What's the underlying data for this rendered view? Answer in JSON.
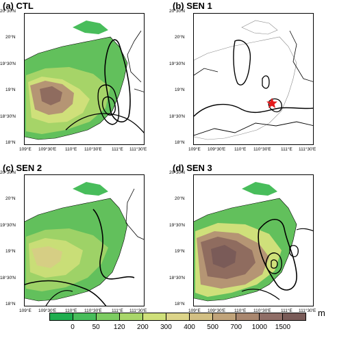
{
  "panels": [
    {
      "id": "a",
      "title": "(a) CTL"
    },
    {
      "id": "b",
      "title": "(b) SEN 1"
    },
    {
      "id": "c",
      "title": "(c) SEN 2"
    },
    {
      "id": "d",
      "title": "(d) SEN 3"
    }
  ],
  "lat_ticks": [
    "20°30'N",
    "20°N",
    "19°30'N",
    "19°N",
    "18°30'N",
    "18°N"
  ],
  "lon_ticks": [
    "109°E",
    "109°30'E",
    "110°E",
    "110°30'E",
    "111°E",
    "111°30'E"
  ],
  "colorbar": {
    "unit": "m",
    "labels": [
      "0",
      "50",
      "120",
      "200",
      "300",
      "400",
      "500",
      "700",
      "1000",
      "1500"
    ],
    "colors": [
      "#1fae4f",
      "#48bd5b",
      "#7dcc62",
      "#a9d66a",
      "#cfe07a",
      "#dcd489",
      "#d2bf83",
      "#c0a37a",
      "#a9876f",
      "#906e67",
      "#7a5b58"
    ]
  },
  "star_marker": {
    "panel": "b",
    "icon": "red-star-icon",
    "color": "#e41a1c"
  }
}
